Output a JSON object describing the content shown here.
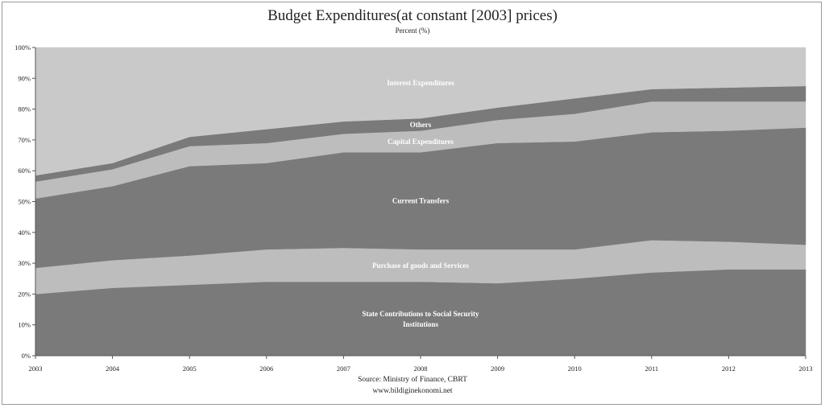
{
  "chart_data": {
    "type": "area",
    "stacked": true,
    "title": "Budget Expenditures(at constant [2003] prices)",
    "subtitle": "Percent (%)",
    "x": [
      "2003",
      "2004",
      "2005",
      "2006",
      "2007",
      "2008",
      "2009",
      "2010",
      "2011",
      "2012",
      "2013"
    ],
    "y_ticks": [
      "0%",
      "10%",
      "20%",
      "30%",
      "40%",
      "50%",
      "60%",
      "70%",
      "80%",
      "90%",
      "100%"
    ],
    "ylim": [
      0,
      100
    ],
    "grid": false,
    "series": [
      {
        "name": "State Contributions to Social Security Institutions",
        "color": "#7a7a7a",
        "label_color": "#ffffff",
        "values": [
          20,
          22,
          23,
          24,
          24,
          24,
          23.5,
          25,
          27,
          28,
          28
        ]
      },
      {
        "name": "Purchase of goods and Services",
        "color": "#bdbdbd",
        "label_color": "#ffffff",
        "values": [
          8.5,
          9,
          9.5,
          10.5,
          11,
          10.5,
          11,
          9.5,
          10.5,
          9,
          8
        ]
      },
      {
        "name": "Current Transfers",
        "color": "#7a7a7a",
        "label_color": "#ffffff",
        "values": [
          22.5,
          24,
          29,
          28,
          31,
          31.5,
          34.5,
          35,
          35,
          36,
          38
        ]
      },
      {
        "name": "Capital Expenditures",
        "color": "#bdbdbd",
        "label_color": "#ffffff",
        "values": [
          5.5,
          5.5,
          6.5,
          6.5,
          6,
          7,
          7.5,
          9,
          10,
          9.5,
          8.5
        ]
      },
      {
        "name": "Others",
        "color": "#7a7a7a",
        "label_color": "#ffffff",
        "values": [
          2,
          2,
          3,
          4.5,
          4,
          4,
          4,
          5,
          4,
          4.5,
          5
        ]
      },
      {
        "name": "Interest Expenditures",
        "color": "#c9c9c9",
        "label_color": "#ffffff",
        "values": [
          41.5,
          37.5,
          29,
          26.5,
          24,
          23,
          19.5,
          16.5,
          13.5,
          13,
          12.5
        ]
      }
    ]
  },
  "footer": {
    "source": "Source: Ministry of Finance, CBRT",
    "website": "www.bildiginekonomi.net"
  }
}
